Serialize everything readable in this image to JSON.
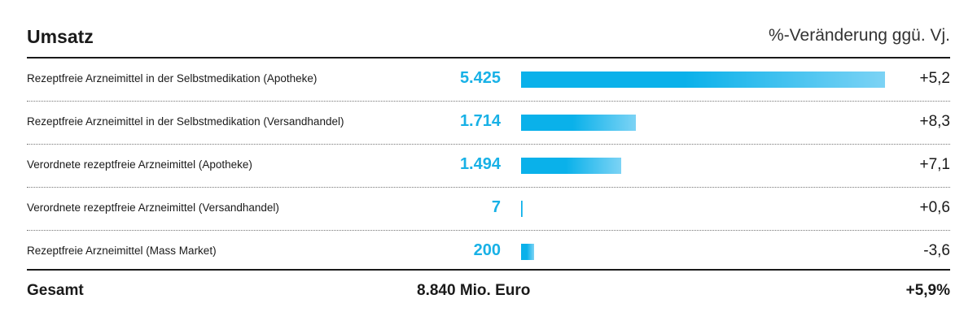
{
  "chart_data": {
    "type": "bar",
    "title": "Umsatz",
    "subtitle": "%-Veränderung ggü. Vj.",
    "categories": [
      "Rezeptfreie Arzneimittel in der Selbstmedikation (Apotheke)",
      "Rezeptfreie Arzneimittel in der Selbstmedikation (Versandhandel)",
      "Verordnete rezeptfreie Arzneimittel (Apotheke)",
      "Verordnete rezeptfreie Arzneimittel (Versandhandel)",
      "Rezeptfreie Arzneimittel (Mass Market)"
    ],
    "values": [
      5425,
      1714,
      1494,
      7,
      200
    ],
    "value_labels": [
      "5.425",
      "1.714",
      "1.494",
      "7",
      "200"
    ],
    "changes": [
      "+5,2",
      "+8,3",
      "+7,1",
      "+0,6",
      "-3,6"
    ],
    "total": {
      "label": "Gesamt",
      "value": "8.840 Mio. Euro",
      "change": "+5,9%"
    },
    "bar_color": "#0ab1ea",
    "value_color": "#18b1e6"
  }
}
